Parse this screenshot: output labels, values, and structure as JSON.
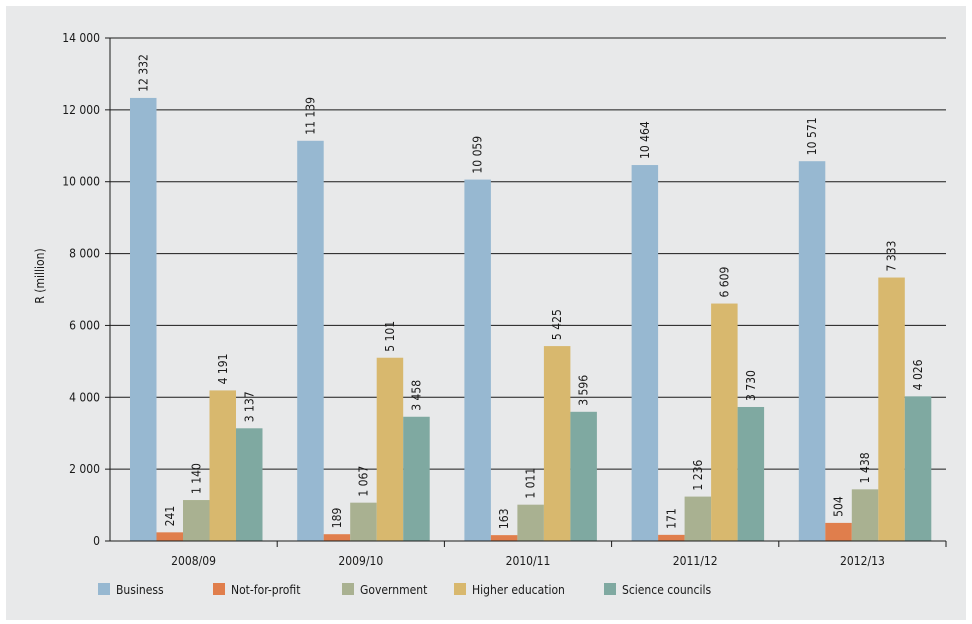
{
  "chart_data": {
    "type": "bar",
    "title": "",
    "xlabel": "",
    "ylabel": "R (million)",
    "ylim": [
      0,
      14000
    ],
    "ytick_values": [
      0,
      2000,
      4000,
      6000,
      8000,
      10000,
      12000,
      14000
    ],
    "ytick_labels": [
      "0",
      "2 000",
      "4 000",
      "6 000",
      "8 000",
      "10 000",
      "12 000",
      "14 000"
    ],
    "grid": "horizontal",
    "legend_position": "bottom",
    "categories": [
      "2008/09",
      "2009/10",
      "2010/11",
      "2011/12",
      "2012/13"
    ],
    "series": [
      {
        "name": "Business",
        "color": "#97b8d1",
        "values": [
          12332,
          11139,
          10059,
          10464,
          10571
        ],
        "labels": [
          "12 332",
          "11 139",
          "10 059",
          "10 464",
          "10 571"
        ]
      },
      {
        "name": "Not-for-profit",
        "color": "#e07e4c",
        "values": [
          241,
          189,
          163,
          171,
          504
        ],
        "labels": [
          "241",
          "189",
          "163",
          "171",
          "504"
        ]
      },
      {
        "name": "Government",
        "color": "#a9b191",
        "values": [
          1140,
          1067,
          1011,
          1236,
          1438
        ],
        "labels": [
          "1 140",
          "1 067",
          "1 011",
          "1 236",
          "1 438"
        ]
      },
      {
        "name": "Higher education",
        "color": "#d8b86e",
        "values": [
          4191,
          5101,
          5425,
          6609,
          7333
        ],
        "labels": [
          "4 191",
          "5 101",
          "5 425",
          "6 609",
          "7 333"
        ]
      },
      {
        "name": "Science councils",
        "color": "#7fa9a1",
        "values": [
          3137,
          3458,
          3596,
          3730,
          4026
        ],
        "labels": [
          "3 137",
          "3 458",
          "3 596",
          "3 730",
          "4 026"
        ]
      }
    ]
  }
}
